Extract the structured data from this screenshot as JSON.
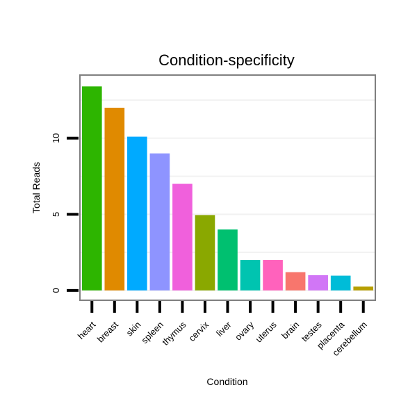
{
  "chart_data": {
    "type": "bar",
    "title": "Condition-specificity",
    "xlabel": "Condition",
    "ylabel": "Total Reads",
    "categories": [
      "heart",
      "breast",
      "skin",
      "spleen",
      "thymus",
      "cervix",
      "liver",
      "ovary",
      "uterus",
      "brain",
      "testes",
      "placenta",
      "cerebellum"
    ],
    "values": [
      13.4,
      12.0,
      10.1,
      9.0,
      7.0,
      4.95,
      4.0,
      2.0,
      2.0,
      1.2,
      1.0,
      0.97,
      0.25
    ],
    "colors": [
      "#2db500",
      "#e08a00",
      "#00aaff",
      "#8e94ff",
      "#f060dc",
      "#8aa800",
      "#00c070",
      "#00c4b0",
      "#ff62bc",
      "#f8766d",
      "#d176f6",
      "#00bcd8",
      "#b79f00"
    ],
    "yticks": [
      0,
      5,
      10
    ],
    "ylim": [
      -0.6,
      14.1
    ],
    "grid": true,
    "legend": "none"
  }
}
